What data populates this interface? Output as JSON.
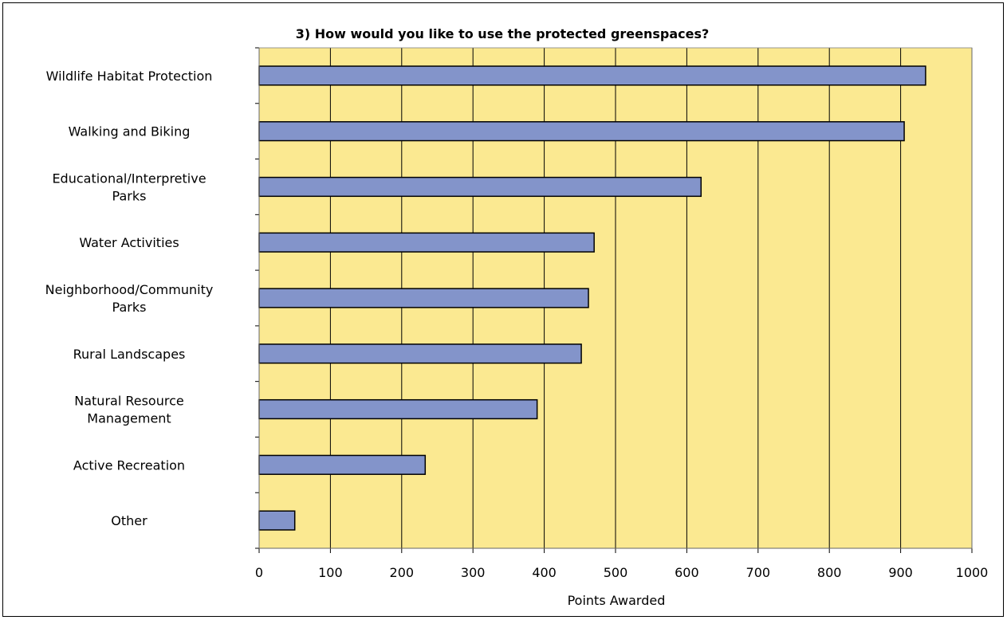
{
  "chart_data": {
    "type": "bar",
    "orientation": "horizontal",
    "title": "3) How would you like to use the protected greenspaces?",
    "xlabel": "Points Awarded",
    "ylabel": "",
    "categories": [
      [
        "Wildlife Habitat Protection"
      ],
      [
        "Walking and Biking"
      ],
      [
        "Educational/Interpretive",
        "Parks"
      ],
      [
        "Water Activities"
      ],
      [
        "Neighborhood/Community",
        "Parks"
      ],
      [
        "Rural Landscapes"
      ],
      [
        "Natural Resource",
        "Management"
      ],
      [
        "Active Recreation"
      ],
      [
        "Other"
      ]
    ],
    "values": [
      935,
      905,
      620,
      470,
      462,
      452,
      390,
      233,
      50
    ],
    "xlim": [
      0,
      1000
    ],
    "xticks": [
      "0",
      "100",
      "200",
      "300",
      "400",
      "500",
      "600",
      "700",
      "800",
      "900",
      "1000"
    ],
    "grid": true,
    "colors": {
      "plot_background": "#FBE991",
      "bar_fill": "#8394CA",
      "bar_stroke": "#000000",
      "gridline": "#000000"
    }
  }
}
